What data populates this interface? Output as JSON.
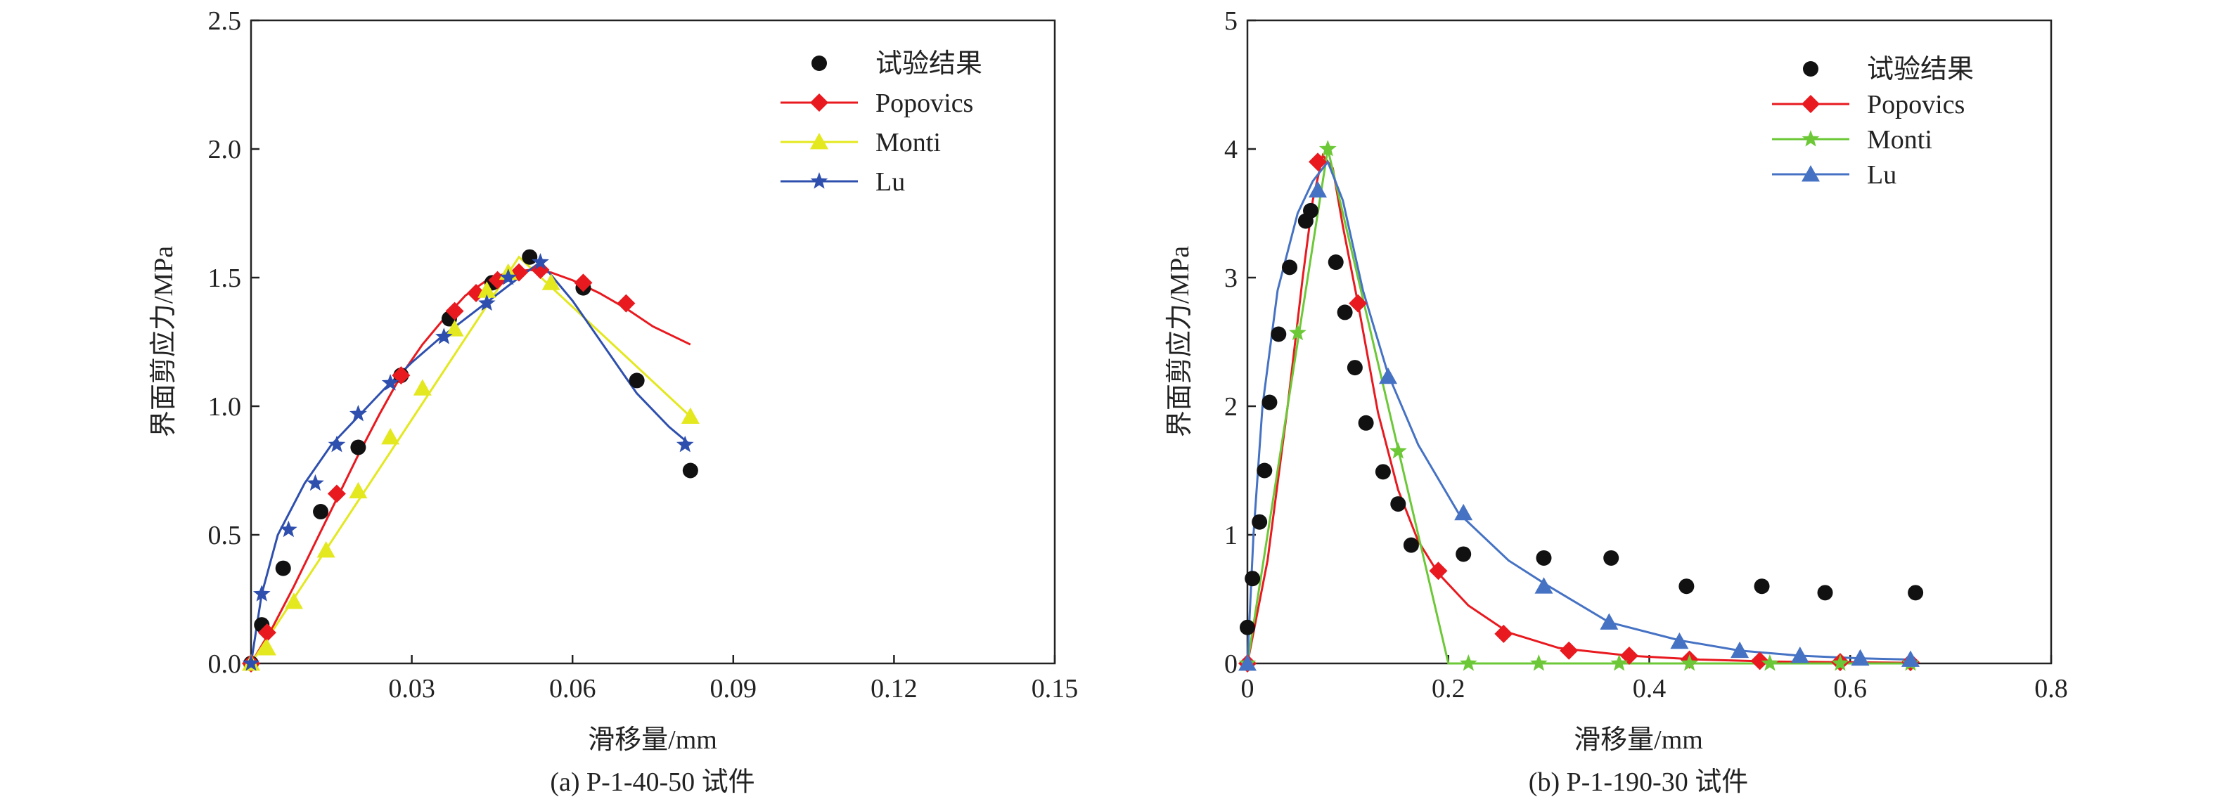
{
  "colors": {
    "experiment": "#111111",
    "popovics": "#e8191f",
    "monti": "#e4e81e",
    "monti_b": "#6cc837",
    "lu": "#2e4fae",
    "lu_b": "#4672c4"
  },
  "chart_data": [
    {
      "type": "line",
      "caption": "(a) P-1-40-50 试件",
      "xlabel": "滑移量/mm",
      "ylabel": "界面剪应力/MPa",
      "xlim": [
        0,
        0.15
      ],
      "ylim": [
        0,
        2.5
      ],
      "xticks": [
        0.03,
        0.06,
        0.09,
        0.12,
        0.15
      ],
      "xtick_labels": [
        "0.03",
        "0.06",
        "0.09",
        "0.12",
        "0.15"
      ],
      "yticks": [
        0,
        0.5,
        1.0,
        1.5,
        2.0,
        2.5
      ],
      "ytick_labels": [
        "0.0",
        "0.5",
        "1.0",
        "1.5",
        "2.0",
        "2.5"
      ],
      "legend_position": "top-right",
      "series": [
        {
          "name": "试验结果",
          "marker": "circle",
          "color": "#111111",
          "line": false,
          "x": [
            0,
            0.002,
            0.006,
            0.013,
            0.02,
            0.028,
            0.037,
            0.045,
            0.052,
            0.062,
            0.072,
            0.082
          ],
          "y": [
            0,
            0.15,
            0.37,
            0.59,
            0.84,
            1.12,
            1.34,
            1.48,
            1.58,
            1.46,
            1.1,
            0.75
          ]
        },
        {
          "name": "Popovics",
          "marker": "diamond",
          "color": "#e8191f",
          "line": true,
          "curve_x": [
            0,
            0.004,
            0.008,
            0.012,
            0.016,
            0.02,
            0.024,
            0.028,
            0.032,
            0.036,
            0.04,
            0.044,
            0.048,
            0.052,
            0.056,
            0.06,
            0.065,
            0.07,
            0.075,
            0.08,
            0.082
          ],
          "curve_y": [
            0,
            0.14,
            0.3,
            0.47,
            0.64,
            0.81,
            0.97,
            1.12,
            1.24,
            1.34,
            1.43,
            1.49,
            1.52,
            1.53,
            1.52,
            1.49,
            1.44,
            1.38,
            1.31,
            1.26,
            1.24
          ],
          "x": [
            0,
            0.003,
            0.016,
            0.028,
            0.038,
            0.042,
            0.046,
            0.05,
            0.054,
            0.062,
            0.07
          ],
          "y": [
            0,
            0.12,
            0.66,
            1.12,
            1.37,
            1.44,
            1.49,
            1.52,
            1.53,
            1.48,
            1.4
          ]
        },
        {
          "name": "Monti",
          "marker": "triangle",
          "color": "#e4e81e",
          "line": true,
          "curve_x": [
            0,
            0.05,
            0.082
          ],
          "curve_y": [
            0,
            1.58,
            0.96
          ],
          "x": [
            0,
            0.003,
            0.008,
            0.014,
            0.02,
            0.026,
            0.032,
            0.038,
            0.044,
            0.048,
            0.056,
            0.082
          ],
          "y": [
            0,
            0.06,
            0.24,
            0.44,
            0.67,
            0.88,
            1.07,
            1.3,
            1.45,
            1.52,
            1.48,
            0.96
          ]
        },
        {
          "name": "Lu",
          "marker": "star",
          "color": "#2e4fae",
          "line": true,
          "curve_x": [
            0,
            0.002,
            0.005,
            0.01,
            0.015,
            0.02,
            0.025,
            0.03,
            0.035,
            0.04,
            0.045,
            0.05,
            0.054,
            0.06,
            0.066,
            0.072,
            0.078,
            0.082
          ],
          "curve_y": [
            0,
            0.27,
            0.5,
            0.7,
            0.85,
            0.96,
            1.07,
            1.17,
            1.26,
            1.34,
            1.42,
            1.5,
            1.56,
            1.41,
            1.23,
            1.05,
            0.92,
            0.85
          ],
          "x": [
            0,
            0.002,
            0.007,
            0.012,
            0.016,
            0.02,
            0.026,
            0.036,
            0.044,
            0.048,
            0.054,
            0.081
          ],
          "y": [
            0,
            0.27,
            0.52,
            0.7,
            0.85,
            0.97,
            1.09,
            1.27,
            1.4,
            1.5,
            1.56,
            0.85
          ]
        }
      ]
    },
    {
      "type": "line",
      "caption": "(b) P-1-190-30 试件",
      "xlabel": "滑移量/mm",
      "ylabel": "界面剪应力/MPa",
      "xlim": [
        0,
        0.8
      ],
      "ylim": [
        0,
        5
      ],
      "xticks": [
        0,
        0.2,
        0.4,
        0.6,
        0.8
      ],
      "xtick_labels": [
        "0",
        "0.2",
        "0.4",
        "0.6",
        "0.8"
      ],
      "yticks": [
        0,
        1,
        2,
        3,
        4,
        5
      ],
      "ytick_labels": [
        "0",
        "1",
        "2",
        "3",
        "4",
        "5"
      ],
      "legend_position": "top-right",
      "series": [
        {
          "name": "试验结果",
          "marker": "circle",
          "color": "#111111",
          "line": false,
          "x": [
            0,
            0.005,
            0.012,
            0.017,
            0.022,
            0.031,
            0.042,
            0.058,
            0.063,
            0.088,
            0.097,
            0.107,
            0.118,
            0.135,
            0.15,
            0.163,
            0.215,
            0.295,
            0.362,
            0.437,
            0.512,
            0.575,
            0.665
          ],
          "y": [
            0.28,
            0.66,
            1.1,
            1.5,
            2.03,
            2.56,
            3.08,
            3.44,
            3.52,
            3.12,
            2.73,
            2.3,
            1.87,
            1.49,
            1.24,
            0.92,
            0.85,
            0.82,
            0.82,
            0.6,
            0.6,
            0.55,
            0.55
          ]
        },
        {
          "name": "Popovics",
          "marker": "diamond",
          "color": "#e8191f",
          "line": true,
          "curve_x": [
            0,
            0.02,
            0.04,
            0.055,
            0.065,
            0.075,
            0.085,
            0.095,
            0.11,
            0.13,
            0.15,
            0.17,
            0.19,
            0.22,
            0.26,
            0.31,
            0.38,
            0.45,
            0.52,
            0.59,
            0.66
          ],
          "curve_y": [
            0,
            0.8,
            2.0,
            3.0,
            3.6,
            3.95,
            3.85,
            3.4,
            2.8,
            1.95,
            1.35,
            0.95,
            0.7,
            0.45,
            0.24,
            0.12,
            0.06,
            0.03,
            0.015,
            0.01,
            0.005
          ],
          "x": [
            0,
            0.07,
            0.11,
            0.19,
            0.255,
            0.32,
            0.38,
            0.44,
            0.51,
            0.59,
            0.66
          ],
          "y": [
            0,
            3.9,
            2.8,
            0.72,
            0.23,
            0.1,
            0.06,
            0.03,
            0.02,
            0.01,
            0.01
          ]
        },
        {
          "name": "Monti",
          "marker": "star",
          "color": "#6cc837",
          "line": true,
          "curve_x": [
            0,
            0.04,
            0.08,
            0.2,
            0.66
          ],
          "curve_y": [
            0,
            2.0,
            4.0,
            0,
            0
          ],
          "x": [
            0,
            0.05,
            0.08,
            0.15,
            0.22,
            0.29,
            0.37,
            0.44,
            0.52,
            0.59,
            0.66
          ],
          "y": [
            0,
            2.57,
            4.0,
            1.65,
            0,
            0,
            0,
            0,
            0,
            0,
            0
          ]
        },
        {
          "name": "Lu",
          "marker": "triangle",
          "color": "#4672c4",
          "line": true,
          "curve_x": [
            0,
            0.006,
            0.015,
            0.03,
            0.05,
            0.065,
            0.08,
            0.095,
            0.115,
            0.14,
            0.17,
            0.21,
            0.26,
            0.3,
            0.36,
            0.43,
            0.49,
            0.55,
            0.61,
            0.66
          ],
          "curve_y": [
            0,
            1.0,
            2.0,
            2.9,
            3.5,
            3.75,
            3.9,
            3.6,
            2.9,
            2.25,
            1.7,
            1.17,
            0.8,
            0.6,
            0.32,
            0.18,
            0.1,
            0.06,
            0.04,
            0.03
          ],
          "x": [
            0,
            0.07,
            0.14,
            0.215,
            0.295,
            0.36,
            0.43,
            0.49,
            0.55,
            0.61,
            0.66
          ],
          "y": [
            0,
            3.68,
            2.23,
            1.17,
            0.6,
            0.32,
            0.17,
            0.1,
            0.06,
            0.04,
            0.03
          ]
        }
      ]
    }
  ]
}
